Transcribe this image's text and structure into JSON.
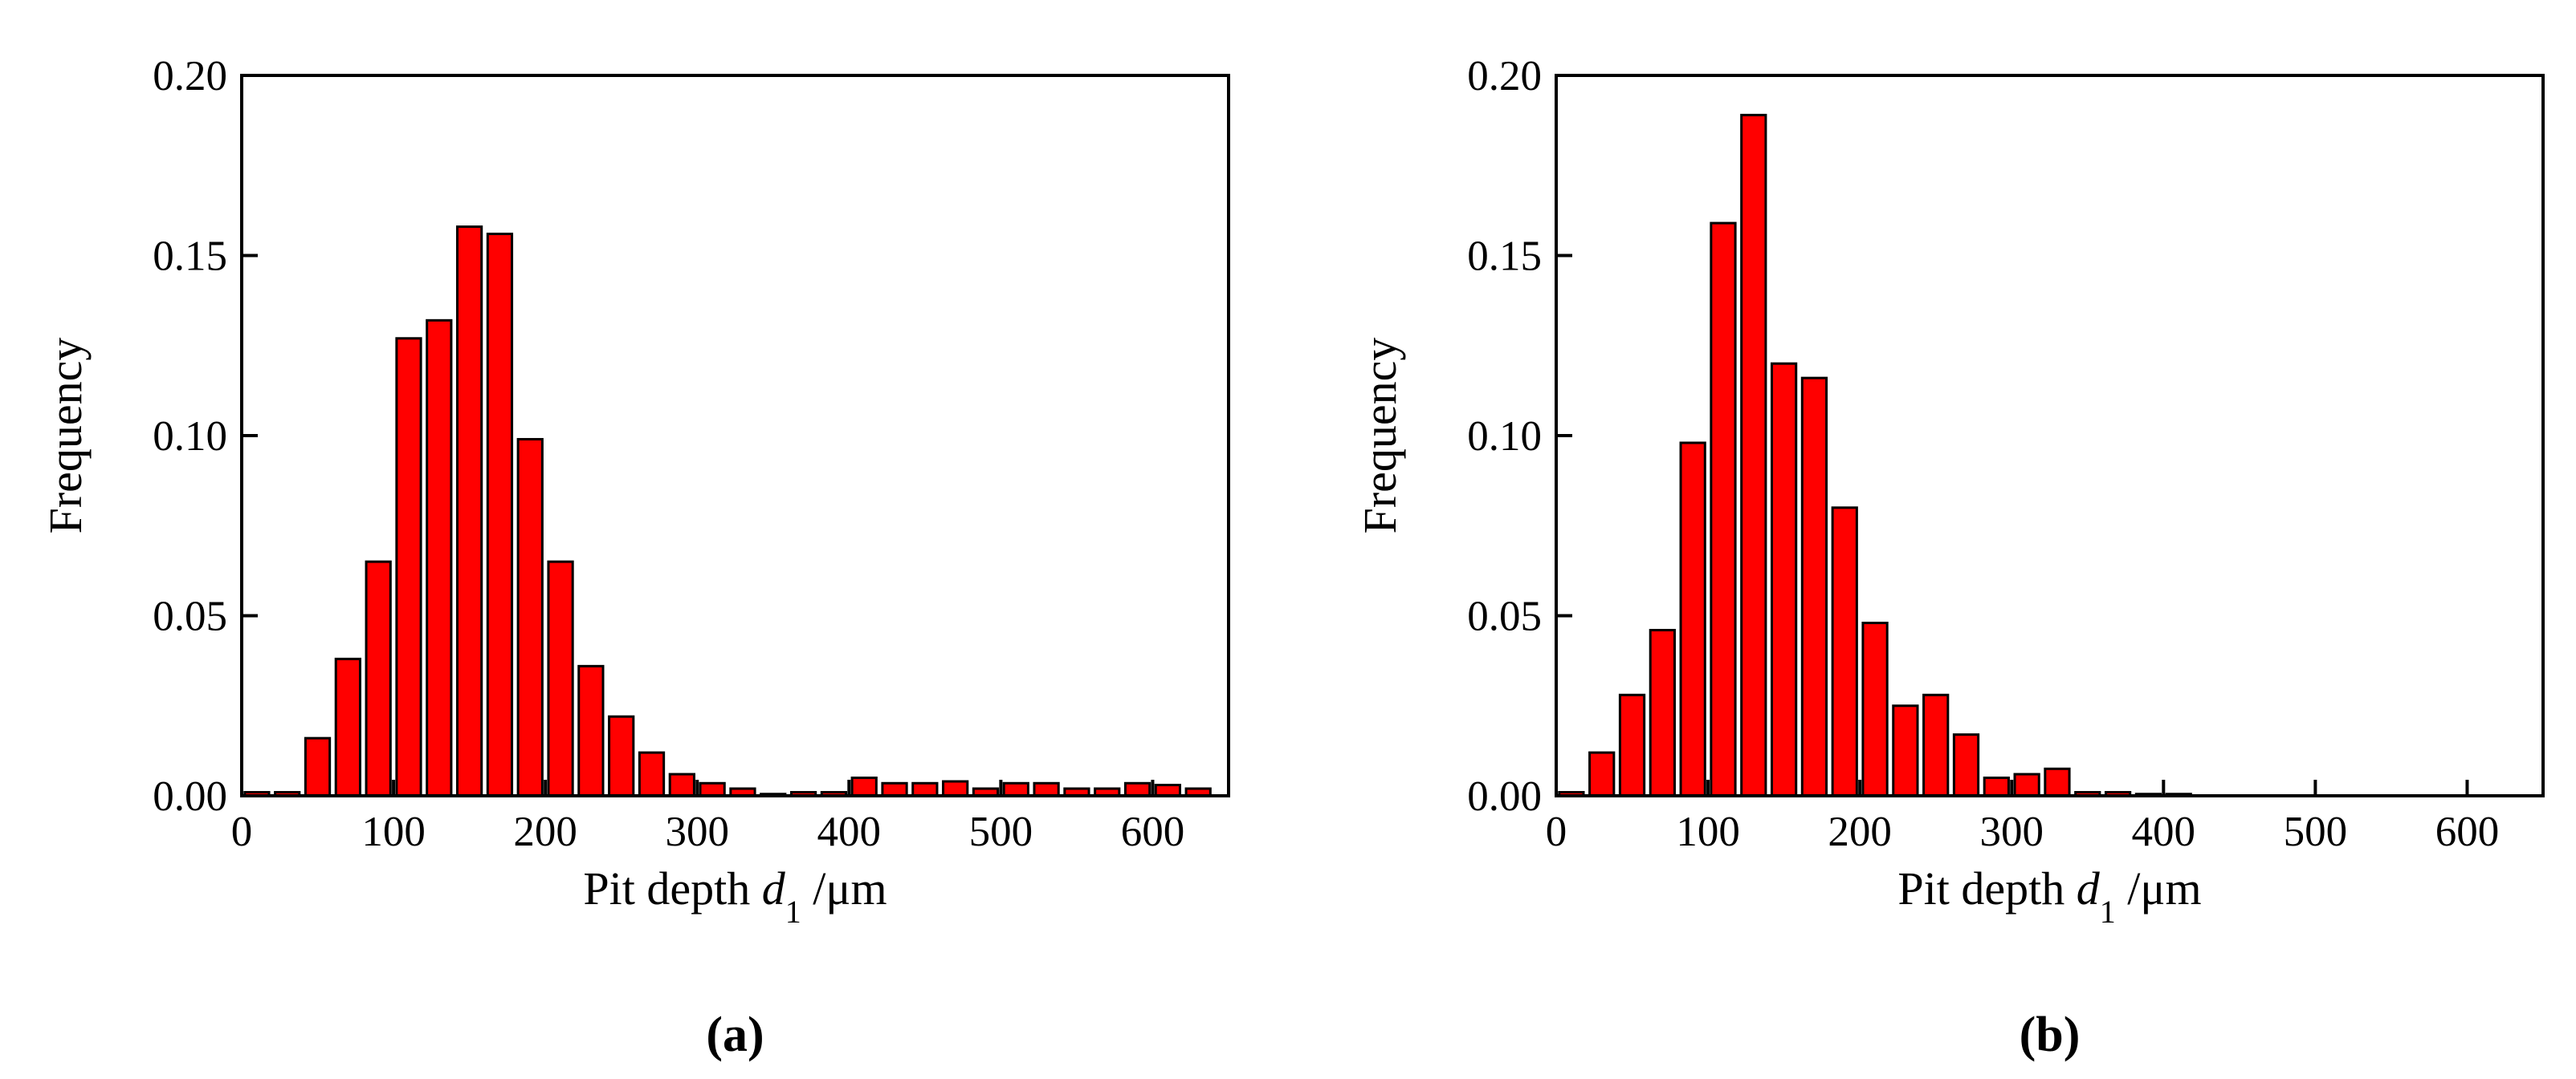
{
  "chart_data": [
    {
      "type": "histogram",
      "panel_label": "(a)",
      "y_label": "Frequency",
      "x_label": [
        "Pit depth ",
        "d",
        "1",
        " /μm"
      ],
      "bins": [
        0,
        20,
        40,
        60,
        80,
        100,
        120,
        140,
        160,
        180,
        200,
        220,
        240,
        260,
        280,
        300,
        320,
        340,
        360,
        380,
        400,
        420,
        440,
        460,
        480,
        500,
        520,
        540,
        560,
        580,
        600,
        620,
        640
      ],
      "values": [
        0.001,
        0.001,
        0.016,
        0.038,
        0.065,
        0.127,
        0.132,
        0.158,
        0.156,
        0.099,
        0.065,
        0.036,
        0.022,
        0.012,
        0.006,
        0.0035,
        0.002,
        0.0005,
        0.001,
        0.001,
        0.005,
        0.0035,
        0.0035,
        0.004,
        0.002,
        0.0035,
        0.0035,
        0.002,
        0.002,
        0.0035,
        0.003,
        0.002
      ],
      "color": "#ff0000",
      "xlim": [
        0,
        650
      ],
      "xticks": [
        0,
        100,
        200,
        300,
        400,
        500,
        600
      ],
      "ylim": [
        0,
        0.2
      ],
      "yticks": [
        {
          "value": 0,
          "label": "0.00"
        },
        0.05,
        {
          "value": 0.1,
          "label": "0.10"
        },
        0.15,
        {
          "value": 0.2,
          "label": "0.20"
        }
      ]
    },
    {
      "type": "histogram",
      "panel_label": "(b)",
      "y_label": "Frequency",
      "x_label": [
        "Pit depth ",
        "d",
        "1",
        " /μm"
      ],
      "bins": [
        0,
        20,
        40,
        60,
        80,
        100,
        120,
        140,
        160,
        180,
        200,
        220,
        240,
        260,
        280,
        300,
        320,
        340,
        360,
        380,
        400,
        420
      ],
      "values": [
        0.001,
        0.012,
        0.028,
        0.046,
        0.098,
        0.159,
        0.189,
        0.12,
        0.116,
        0.08,
        0.048,
        0.025,
        0.028,
        0.017,
        0.005,
        0.006,
        0.0075,
        0.001,
        0.001,
        0.0005,
        0.0005
      ],
      "color": "#ff0000",
      "xlim": [
        0,
        650
      ],
      "xticks": [
        0,
        100,
        200,
        300,
        400,
        500,
        600
      ],
      "ylim": [
        0,
        0.2
      ],
      "yticks": [
        {
          "value": 0,
          "label": "0.00"
        },
        0.05,
        {
          "value": 0.1,
          "label": "0.10"
        },
        0.15,
        {
          "value": 0.2,
          "label": "0.20"
        }
      ]
    }
  ]
}
